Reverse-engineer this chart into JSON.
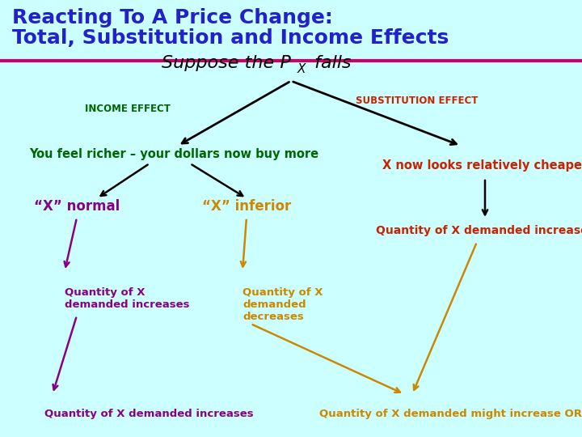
{
  "bg_color": "#ccffff",
  "title_line1": "Reacting To A Price Change:",
  "title_line2": "Total, Substitution and Income Effects",
  "title_color": "#2222cc",
  "title_fontsize": 18,
  "divider_color": "#cc0066",
  "suppose_color": "#000000",
  "suppose_fontsize": 16,
  "income_effect_label": "INCOME EFFECT",
  "income_effect_color": "#006600",
  "substitution_effect_label": "SUBSTITUTION EFFECT",
  "substitution_effect_color": "#cc2200",
  "feel_richer_text": "You feel richer – your dollars now buy more",
  "feel_richer_color": "#006600",
  "x_cheaper_text": "X now looks relatively cheaper",
  "x_cheaper_color": "#cc2200",
  "x_normal_text": "“X” normal",
  "x_normal_color": "#880088",
  "x_inferior_text": "“X” inferior",
  "x_inferior_color": "#cc8800",
  "qty_normal_inc_text": "Quantity of X\ndemanded increases",
  "qty_normal_inc_color": "#880088",
  "qty_inferior_dec_text": "Quantity of X\ndemanded\ndecreases",
  "qty_inferior_dec_color": "#cc8800",
  "qty_subst_inc_text": "Quantity of X demanded increases",
  "qty_subst_inc_color": "#cc2200",
  "qty_bottom_left_text": "Quantity of X demanded increases",
  "qty_bottom_left_color": "#880088",
  "qty_bottom_right_text": "Quantity of X demanded might increase OR decrease",
  "qty_bottom_right_color": "#cc8800",
  "arrow_black": "#000000",
  "arrow_purple": "#880088",
  "arrow_orange": "#cc8800"
}
